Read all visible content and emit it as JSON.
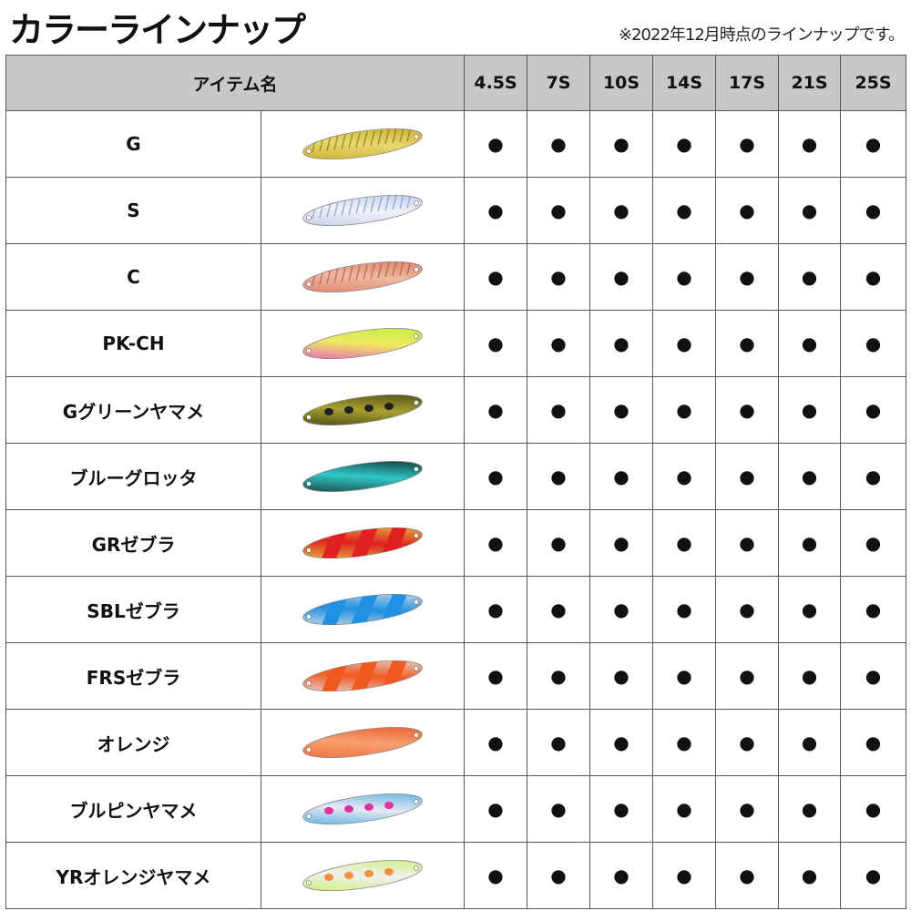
{
  "title": "カラーラインナップ",
  "note": "※2022年12月時点のラインナップです。",
  "header": {
    "item_name": "アイテム名",
    "sizes": [
      "4.5S",
      "7S",
      "10S",
      "14S",
      "17S",
      "21S",
      "25S"
    ]
  },
  "available_mark": "●",
  "rows": [
    {
      "name": "G",
      "colors": [
        "#c9a520",
        "#e8d870",
        "#6b6a1a"
      ],
      "pattern": "scales"
    },
    {
      "name": "S",
      "colors": [
        "#b8c8e8",
        "#f2f2f6",
        "#6a88c8"
      ],
      "pattern": "scales"
    },
    {
      "name": "C",
      "colors": [
        "#d87a60",
        "#f0b8a0",
        "#a04a38"
      ],
      "pattern": "scales"
    },
    {
      "name": "PK-CH",
      "colors": [
        "#e850d0",
        "#f0e860",
        "#b8f040"
      ],
      "pattern": "gradient"
    },
    {
      "name": "Gグリーンヤマメ",
      "colors": [
        "#3a3a10",
        "#a8a030",
        "#222"
      ],
      "pattern": "spots"
    },
    {
      "name": "ブルーグロッタ",
      "colors": [
        "#1a2a2a",
        "#30c8c8",
        "#0a1818"
      ],
      "pattern": "gradient"
    },
    {
      "name": "GRゼブラ",
      "colors": [
        "#e8d040",
        "#e02020",
        "#e02020"
      ],
      "pattern": "stripes"
    },
    {
      "name": "SBLゼブラ",
      "colors": [
        "#e0e4ec",
        "#2090e0",
        "#2090e0"
      ],
      "pattern": "stripes"
    },
    {
      "name": "FRSゼブラ",
      "colors": [
        "#e4e4ec",
        "#f05a20",
        "#f05a20"
      ],
      "pattern": "stripes"
    },
    {
      "name": "オレンジ",
      "colors": [
        "#f06830",
        "#f8a070",
        "#e85020"
      ],
      "pattern": "gradient"
    },
    {
      "name": "ブルピンヤマメ",
      "colors": [
        "#40a8e0",
        "#e8e8f0",
        "#e030a0"
      ],
      "pattern": "spots"
    },
    {
      "name": "YRオレンジヤマメ",
      "colors": [
        "#c8f060",
        "#f0f0f0",
        "#f09040"
      ],
      "pattern": "spots"
    }
  ]
}
